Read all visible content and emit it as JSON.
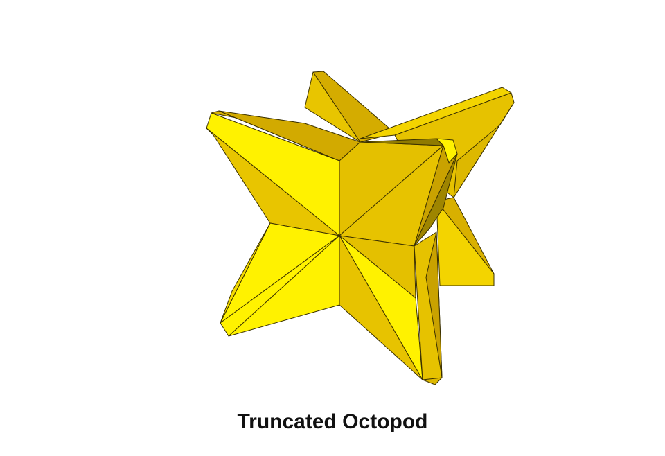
{
  "caption": "Truncated Octopod",
  "palette": {
    "bright": "#FFF200",
    "light": "#F3D400",
    "mid": "#E6C200",
    "dark": "#D2AA00",
    "darker": "#BF9A00",
    "darkest": "#8F7A00",
    "edge": "#3a3000"
  }
}
